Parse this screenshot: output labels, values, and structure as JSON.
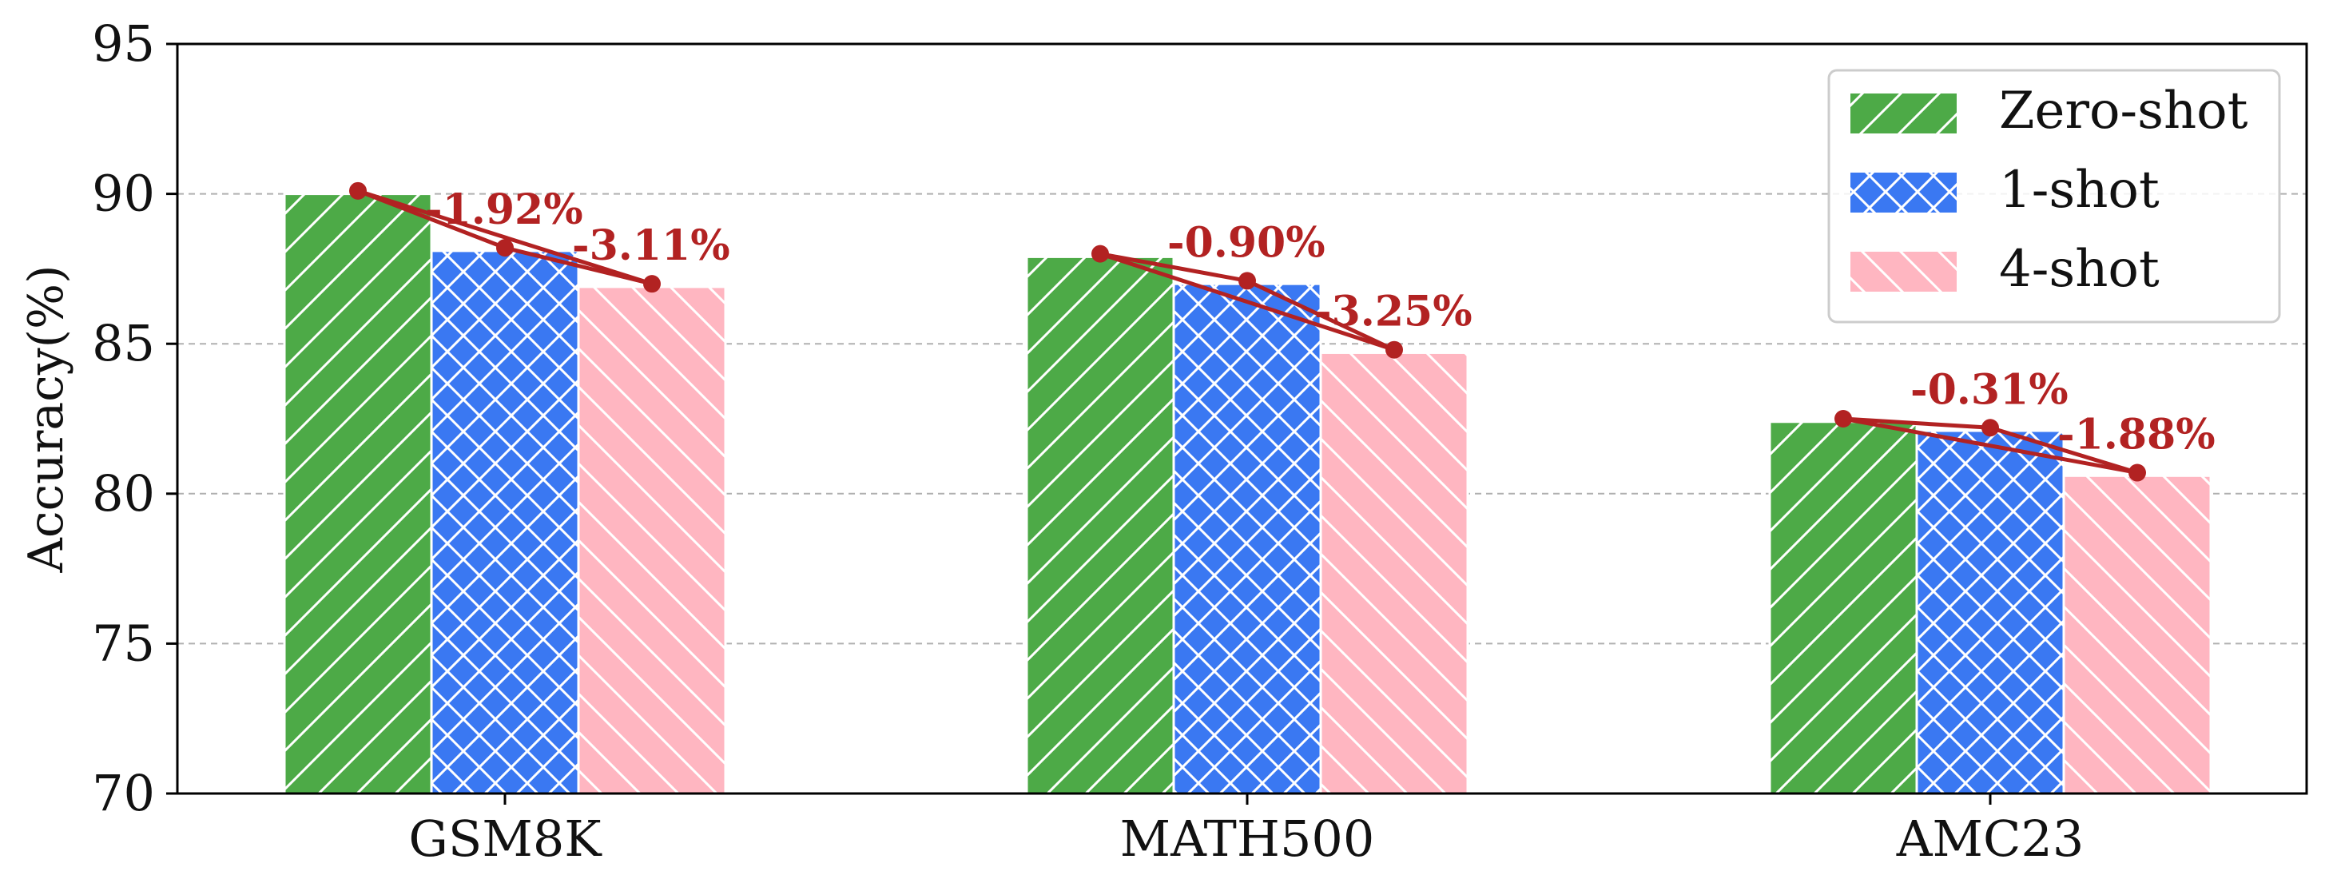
{
  "chart_data": {
    "type": "bar",
    "categories": [
      "GSM8K",
      "MATH500",
      "AMC23"
    ],
    "ylabel": "Accuracy(%)",
    "ylim": [
      70,
      95
    ],
    "yticks": [
      70,
      75,
      80,
      85,
      90,
      95
    ],
    "grid": "horizontal dashed",
    "legend_position": "top-right",
    "series": [
      {
        "name": "Zero-shot",
        "values": [
          90.0,
          87.9,
          82.4
        ],
        "color": "#4daa47",
        "pattern": "diagonal-hatch"
      },
      {
        "name": "1-shot",
        "values": [
          88.1,
          87.0,
          82.1
        ],
        "color": "#3a78f2",
        "pattern": "cross-hatch"
      },
      {
        "name": "4-shot",
        "values": [
          86.9,
          84.7,
          80.6
        ],
        "color": "#ffb6c1",
        "pattern": "back-diagonal-hatch"
      }
    ],
    "trend_line": {
      "color": "#b22222",
      "points": [
        [
          90.1,
          88.2,
          87.0
        ],
        [
          88.0,
          87.1,
          84.8
        ],
        [
          82.5,
          82.2,
          80.7
        ]
      ]
    },
    "annotations": [
      [
        "-1.92%",
        "-3.11%"
      ],
      [
        "-0.90%",
        "-3.25%"
      ],
      [
        "-0.31%",
        "-1.88%"
      ]
    ]
  }
}
